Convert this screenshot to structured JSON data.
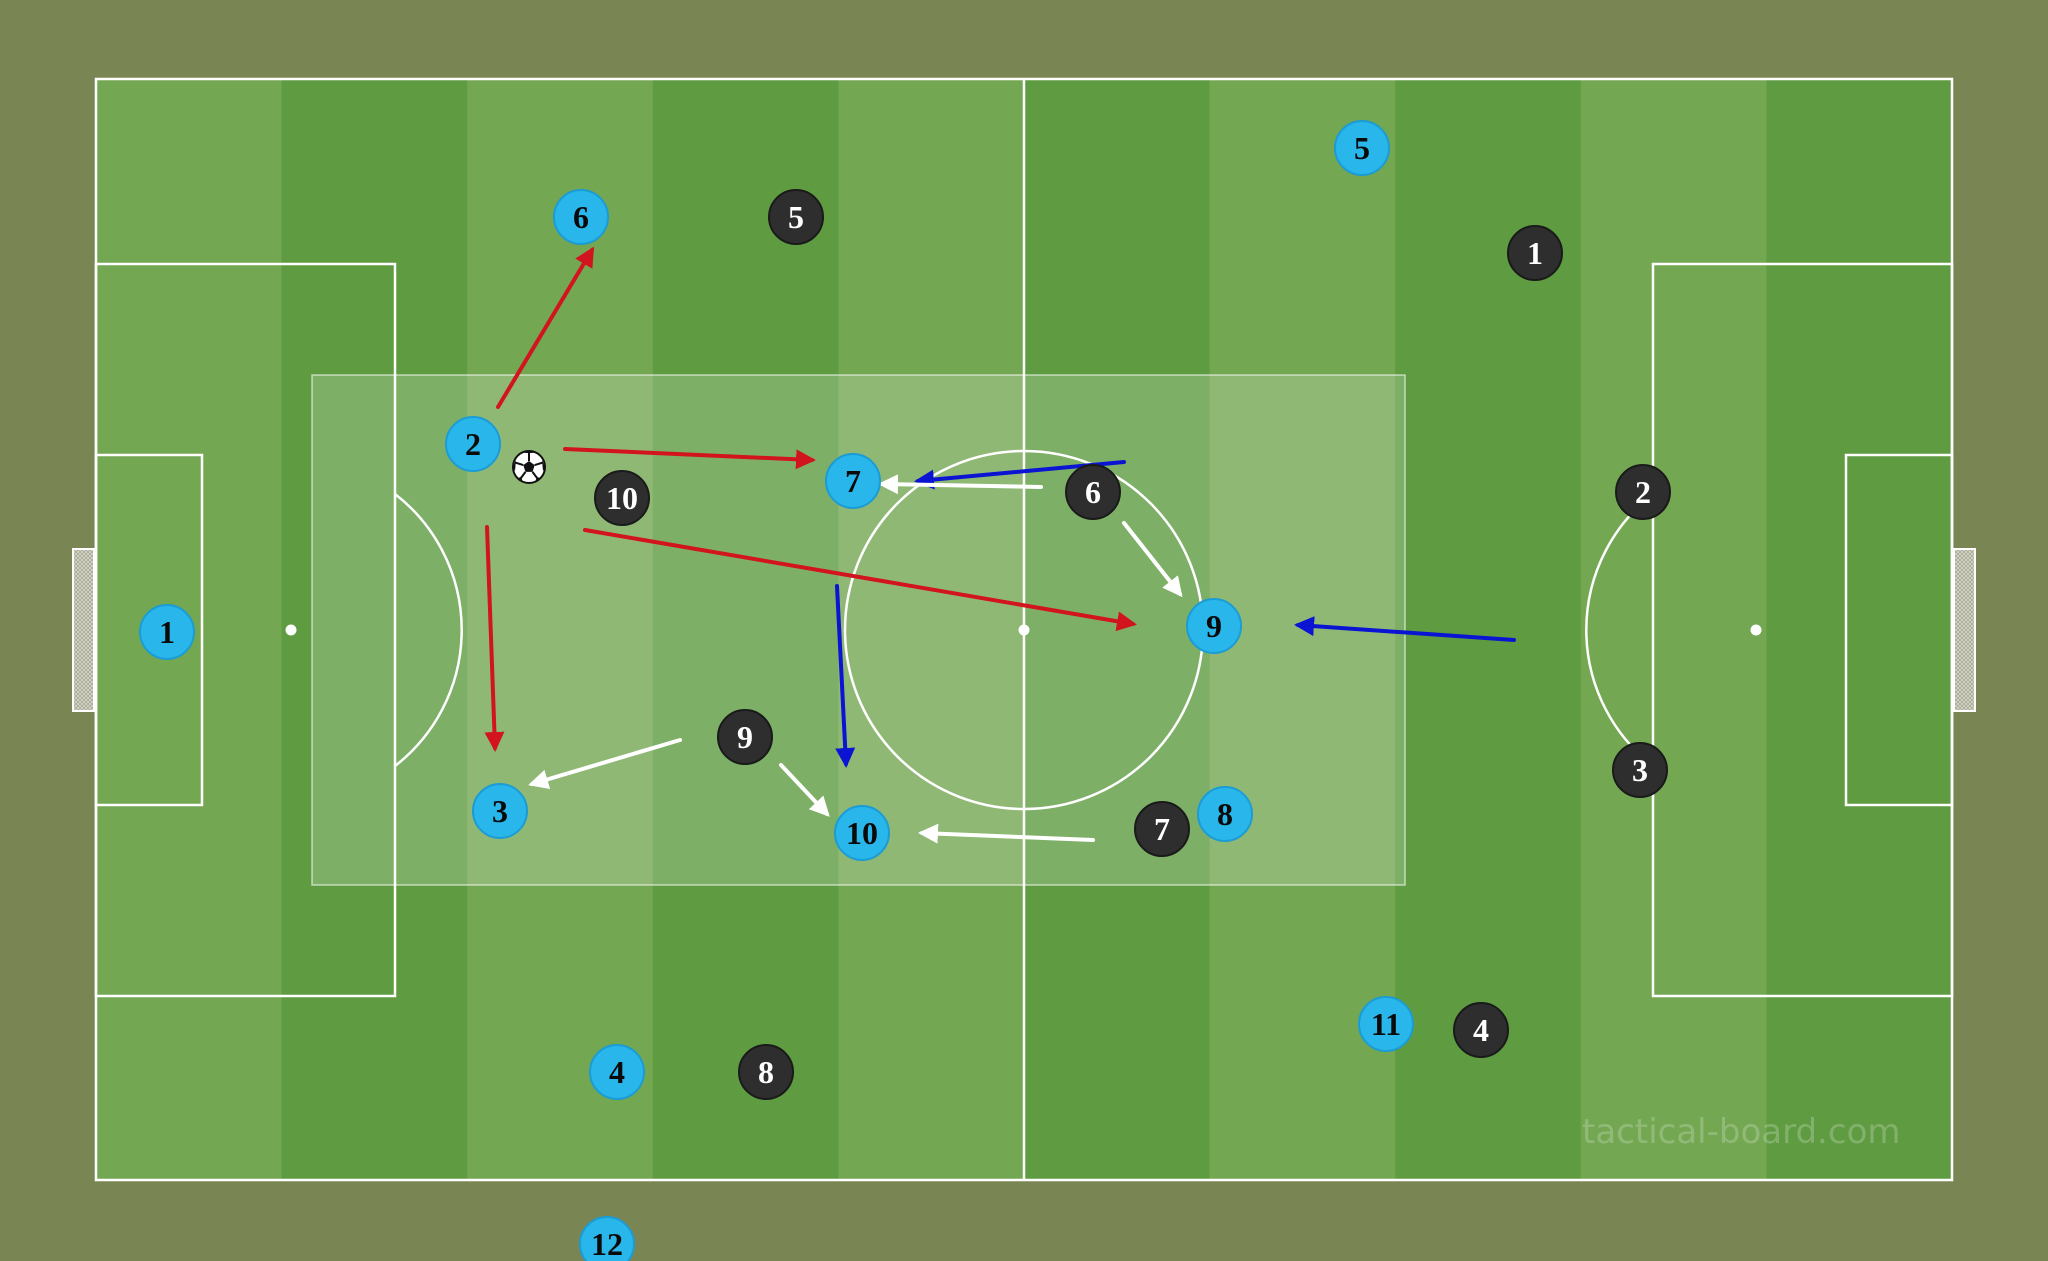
{
  "colors": {
    "background": "#7a8554",
    "stripe_light": "#73a752",
    "stripe_dark": "#5e9b41",
    "line": "#ffffff",
    "home_player": "#29b6ea",
    "away_player": "#2e2e2e",
    "arrow_red": "#d2141e",
    "arrow_blue": "#0a14d2",
    "arrow_white": "#ffffff"
  },
  "watermark": "tactical-board.com",
  "ball_icon": "soccer-ball-icon",
  "home_players": [
    {
      "number": "1"
    },
    {
      "number": "2"
    },
    {
      "number": "3"
    },
    {
      "number": "4"
    },
    {
      "number": "5"
    },
    {
      "number": "6"
    },
    {
      "number": "7"
    },
    {
      "number": "8"
    },
    {
      "number": "9"
    },
    {
      "number": "10"
    },
    {
      "number": "11"
    },
    {
      "number": "12"
    }
  ],
  "away_players": [
    {
      "number": "1"
    },
    {
      "number": "2"
    },
    {
      "number": "3"
    },
    {
      "number": "4"
    },
    {
      "number": "5"
    },
    {
      "number": "6"
    },
    {
      "number": "7"
    },
    {
      "number": "8"
    },
    {
      "number": "9"
    },
    {
      "number": "10"
    }
  ],
  "arrows": [
    {
      "color": "red"
    },
    {
      "color": "red"
    },
    {
      "color": "red"
    },
    {
      "color": "red"
    },
    {
      "color": "blue"
    },
    {
      "color": "blue"
    },
    {
      "color": "blue"
    },
    {
      "color": "white"
    },
    {
      "color": "white"
    },
    {
      "color": "white"
    },
    {
      "color": "white"
    },
    {
      "color": "white"
    }
  ]
}
